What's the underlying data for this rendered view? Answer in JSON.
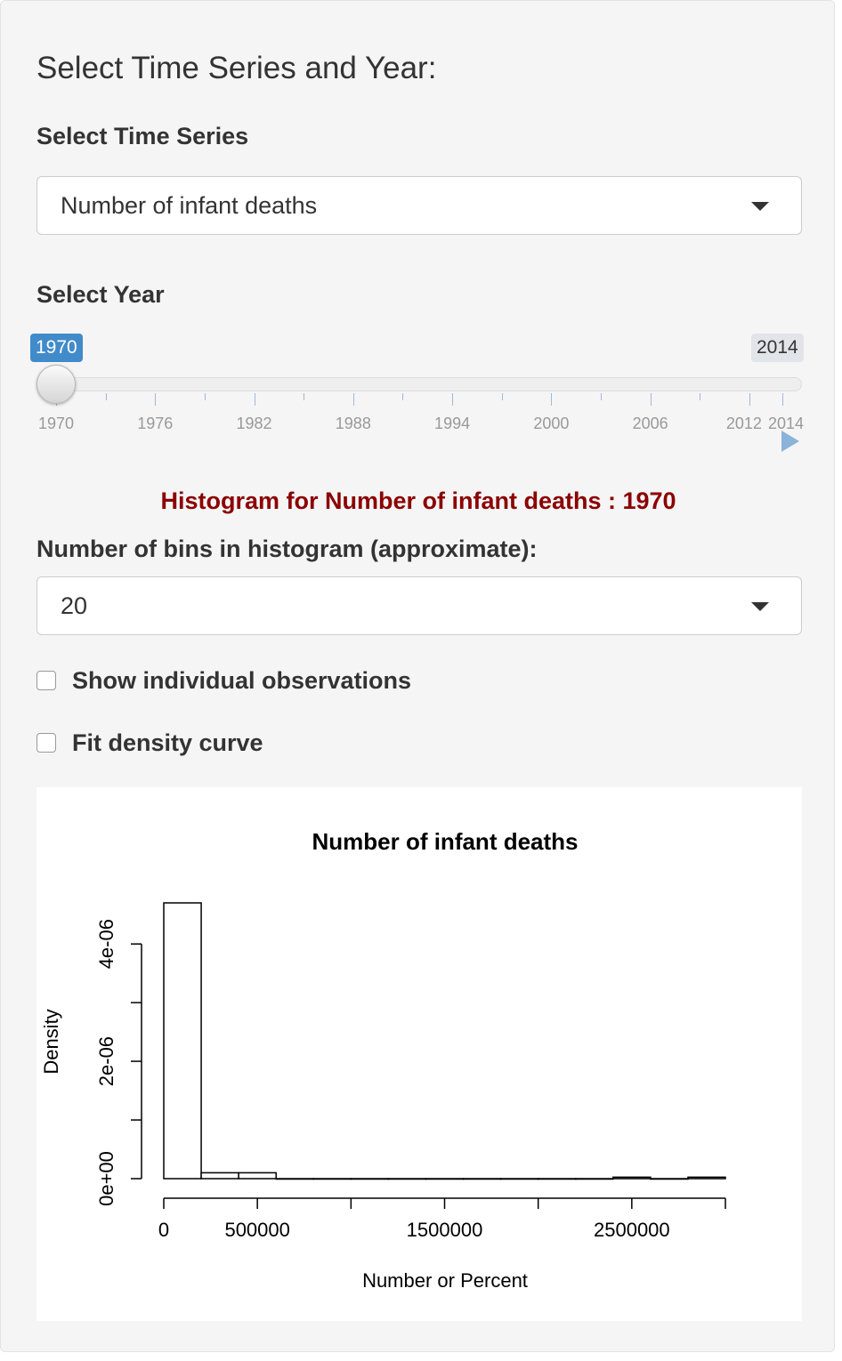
{
  "sidebar": {
    "heading": "Select Time Series and Year:",
    "series_label": "Select Time Series",
    "series_value": "Number of infant deaths",
    "year_label": "Select Year",
    "slider": {
      "min": "1970",
      "max": "2014",
      "value": "1970",
      "min_value": 1970,
      "max_value": 2014,
      "current_value": 1970,
      "tick_labels": [
        "1970",
        "1976",
        "1982",
        "1988",
        "1994",
        "2000",
        "2006",
        "2012",
        "2014"
      ]
    },
    "histogram_heading": "Histogram for Number of infant deaths : 1970",
    "bins_label": "Number of bins in histogram (approximate):",
    "bins_value": "20",
    "checkbox_observations": {
      "label": "Show individual observations",
      "checked": false
    },
    "checkbox_density": {
      "label": "Fit density curve",
      "checked": false
    }
  },
  "colors": {
    "accent": "#428bca",
    "heading_red": "#8b0000",
    "panel_bg": "#f5f5f5"
  },
  "chart_data": {
    "type": "bar",
    "title": "Number of infant deaths",
    "xlabel": "Number or Percent",
    "ylabel": "Density",
    "bin_edges": [
      0,
      200000,
      400000,
      600000,
      800000,
      1000000,
      1200000,
      1400000,
      1600000,
      1800000,
      2000000,
      2200000,
      2400000,
      2600000,
      2800000,
      3000000
    ],
    "values": [
      4.7e-06,
      1e-07,
      1e-07,
      0,
      0,
      0,
      0,
      0,
      0,
      0,
      0,
      0,
      2.5e-08,
      0,
      2.5e-08
    ],
    "xlim": [
      0,
      3000000
    ],
    "ylim": [
      0,
      4.7e-06
    ],
    "x_ticks": [
      0,
      500000,
      1000000,
      1500000,
      2000000,
      2500000,
      3000000
    ],
    "x_tick_labels": [
      "0",
      "500000",
      "",
      "1500000",
      "",
      "2500000",
      ""
    ],
    "y_ticks": [
      0,
      1e-06,
      2e-06,
      3e-06,
      4e-06
    ],
    "y_tick_labels": [
      "0e+00",
      "",
      "2e-06",
      "",
      "4e-06"
    ],
    "grid": false,
    "legend": "none"
  }
}
